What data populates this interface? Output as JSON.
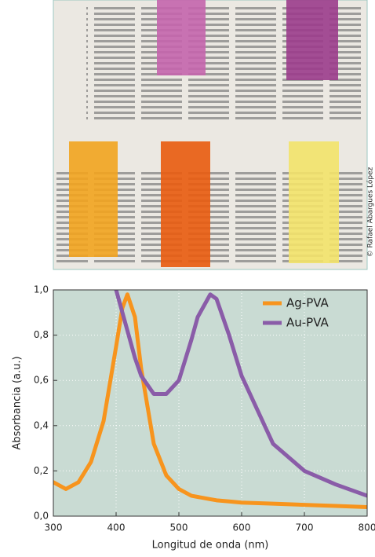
{
  "photo_credit": "© Rafael Abargues López",
  "chart_data": {
    "type": "line",
    "xlabel": "Longitud de onda (nm)",
    "ylabel": "Absorbancia (a.u.)",
    "x": [
      300,
      320,
      340,
      360,
      380,
      400,
      410,
      418,
      430,
      440,
      460,
      480,
      500,
      520,
      530,
      550,
      560,
      580,
      600,
      650,
      700,
      750,
      800
    ],
    "series": [
      {
        "name": "Ag-PVA",
        "color": "#f7941d",
        "values": [
          0.15,
          0.12,
          0.15,
          0.24,
          0.42,
          0.75,
          0.92,
          0.98,
          0.88,
          0.65,
          0.32,
          0.18,
          0.12,
          0.09,
          0.085,
          0.075,
          0.07,
          0.065,
          0.06,
          0.055,
          0.05,
          0.045,
          0.04
        ]
      },
      {
        "name": "Au-PVA",
        "color": "#8a5ca8",
        "values": [
          null,
          null,
          null,
          null,
          null,
          1.0,
          0.9,
          0.82,
          0.7,
          0.62,
          0.54,
          0.54,
          0.6,
          0.78,
          0.88,
          0.98,
          0.96,
          0.8,
          0.62,
          0.32,
          0.2,
          0.14,
          0.09
        ]
      }
    ],
    "xlim": [
      300,
      800
    ],
    "xticks": [
      300,
      400,
      500,
      600,
      700,
      800
    ],
    "ylim": [
      0,
      1
    ],
    "yticks": [
      {
        "value": 0,
        "label": "0,0"
      },
      {
        "value": 0.2,
        "label": "0,2"
      },
      {
        "value": 0.4,
        "label": "0,4"
      },
      {
        "value": 0.6,
        "label": "0,6"
      },
      {
        "value": 0.8,
        "label": "0,8"
      },
      {
        "value": 1,
        "label": "1,0"
      }
    ],
    "grid": true,
    "legend": "upper right",
    "background": "#c9dbd3"
  }
}
